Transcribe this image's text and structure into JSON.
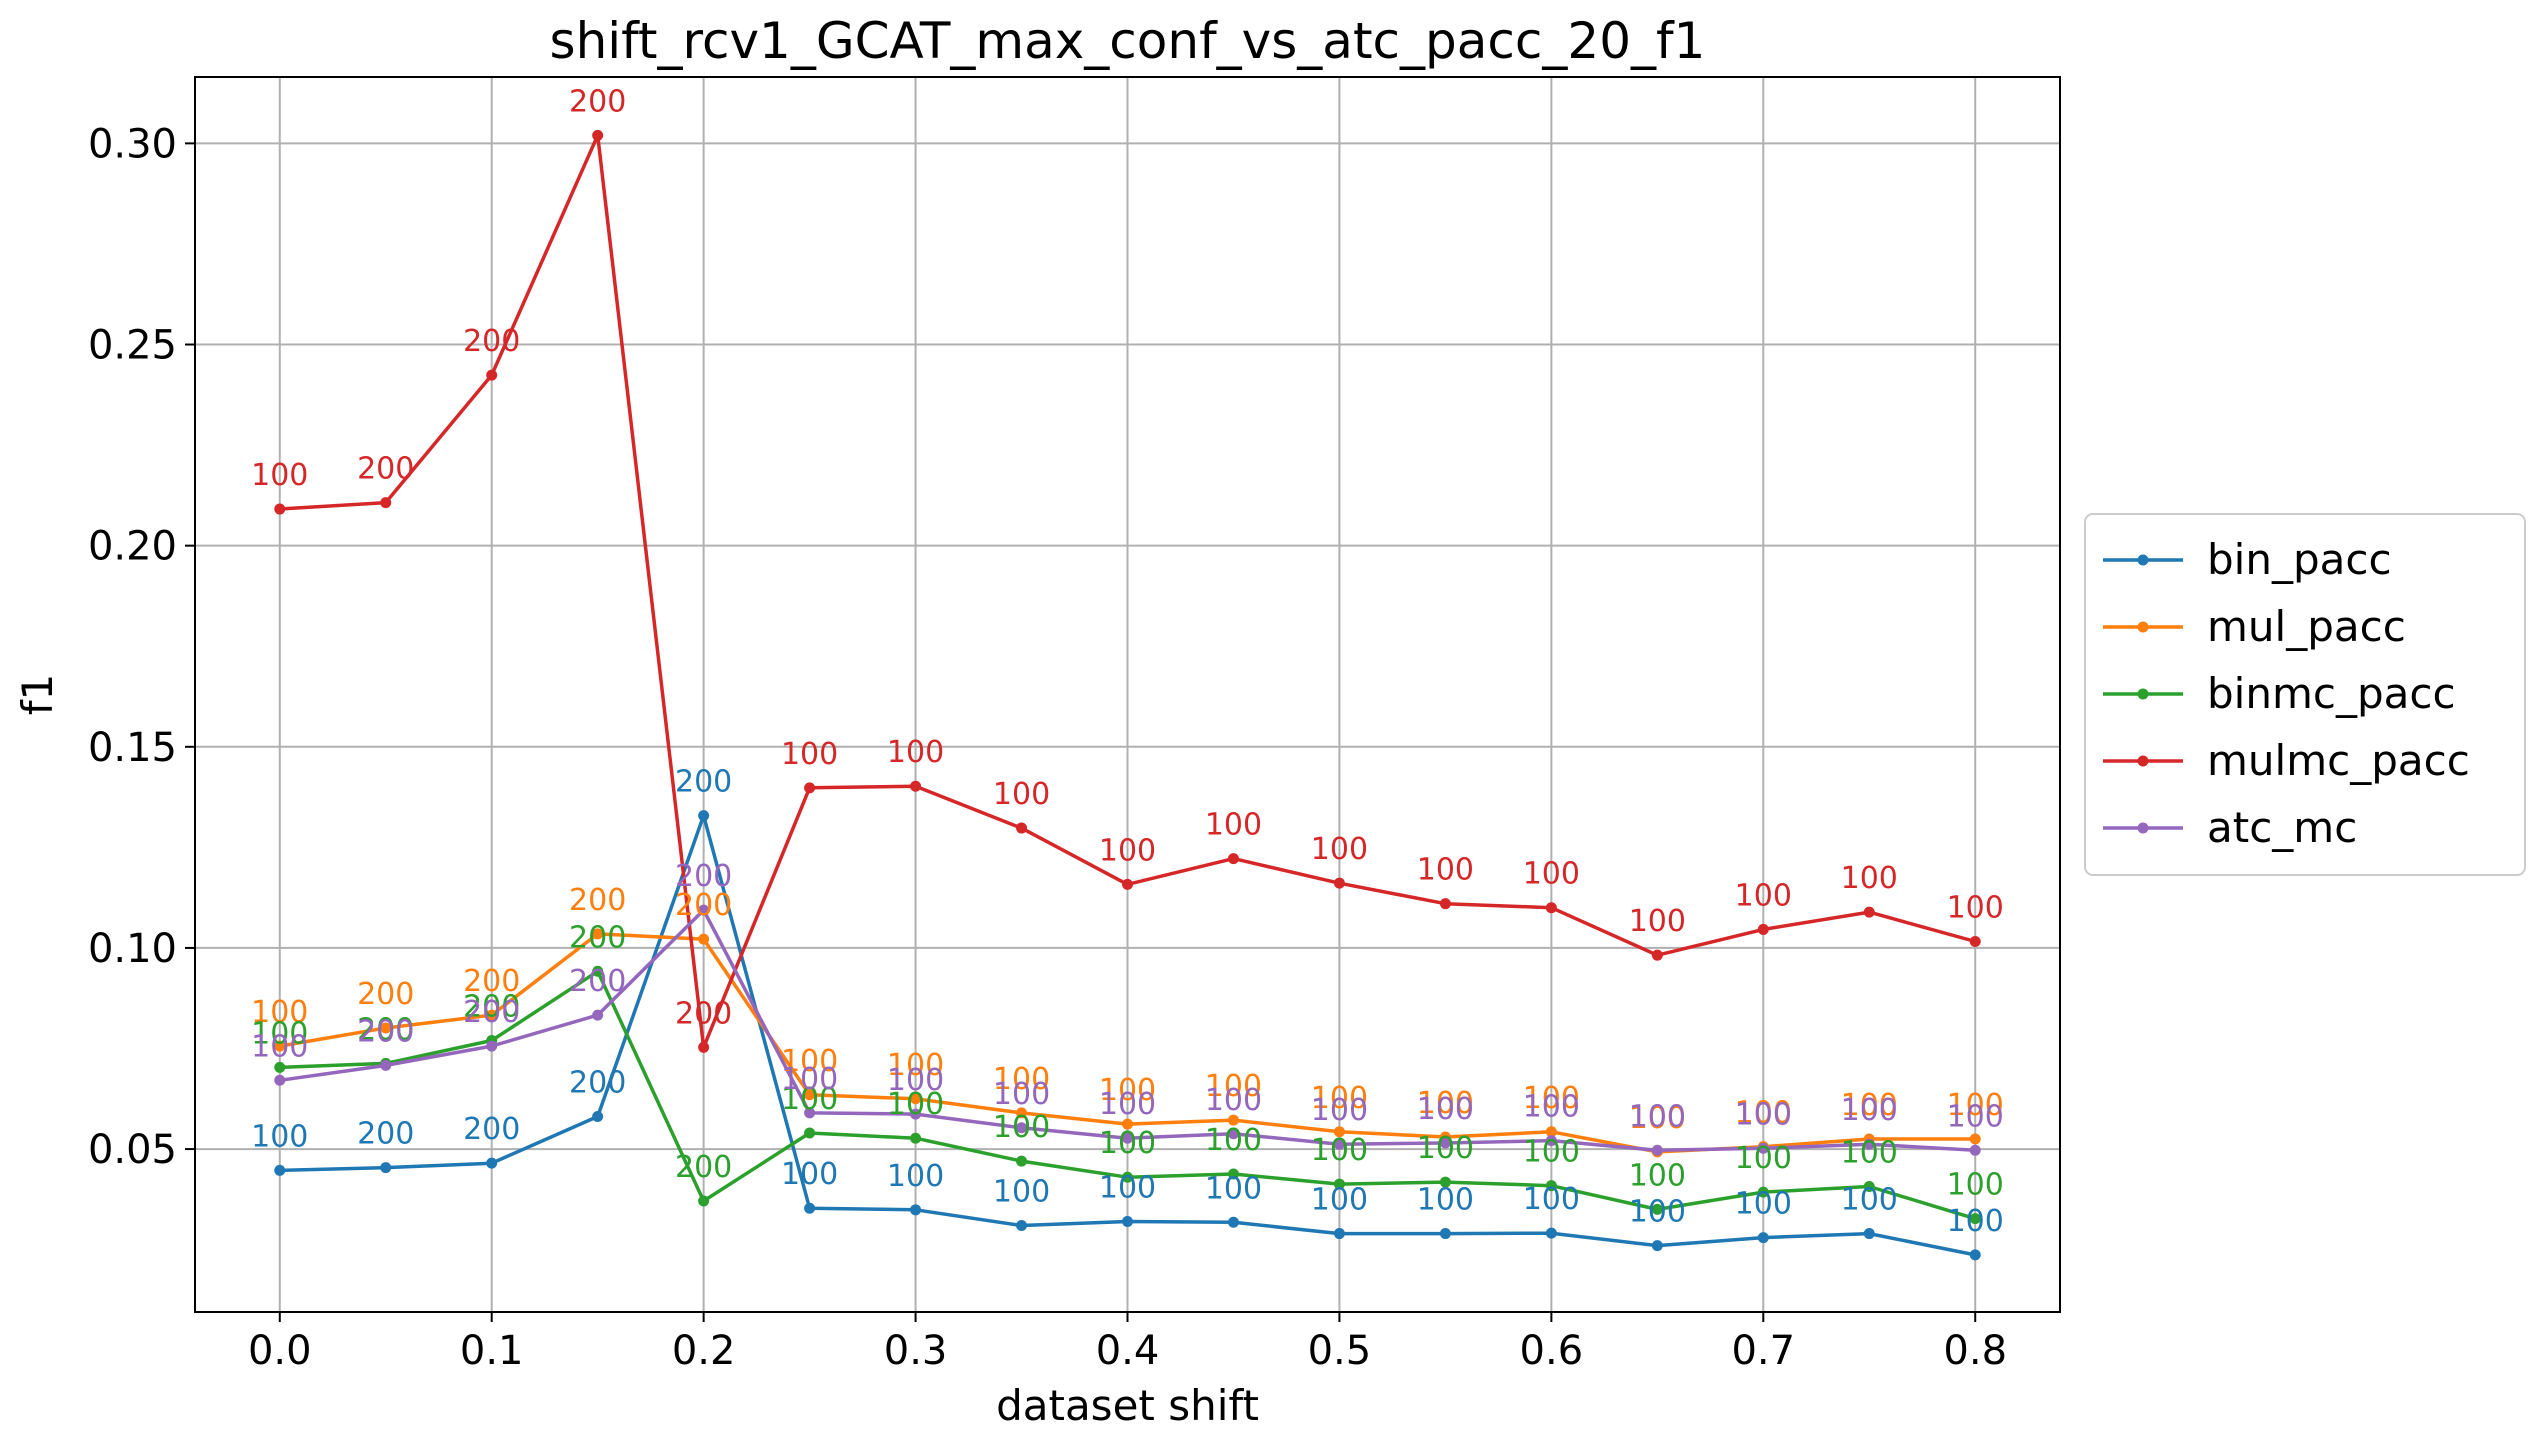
{
  "chart_data": {
    "type": "line",
    "title": "shift_rcv1_GCAT_max_conf_vs_atc_pacc_20_f1",
    "xlabel": "dataset shift",
    "ylabel": "f1",
    "xlim": [
      -0.04,
      0.84
    ],
    "ylim": [
      0.0095,
      0.3165
    ],
    "x_ticks": [
      "0.0",
      "0.1",
      "0.2",
      "0.3",
      "0.4",
      "0.5",
      "0.6",
      "0.7",
      "0.8"
    ],
    "y_ticks": [
      "0.05",
      "0.10",
      "0.15",
      "0.20",
      "0.25",
      "0.30"
    ],
    "grid": true,
    "legend_position": "center-right-outside",
    "x": [
      0.0,
      0.05,
      0.1,
      0.15,
      0.2,
      0.25,
      0.3,
      0.35,
      0.4,
      0.45,
      0.5,
      0.55,
      0.6,
      0.65,
      0.7,
      0.75,
      0.8
    ],
    "series": [
      {
        "name": "bin_pacc",
        "color": "#1f77b4",
        "values": [
          0.0447,
          0.0454,
          0.0465,
          0.0581,
          0.1329,
          0.0353,
          0.0349,
          0.031,
          0.032,
          0.0318,
          0.029,
          0.029,
          0.0291,
          0.026,
          0.028,
          0.029,
          0.0237
        ],
        "labels": [
          "100",
          "200",
          "200",
          "200",
          "200",
          "100",
          "100",
          "100",
          "100",
          "100",
          "100",
          "100",
          "100",
          "100",
          "100",
          "100",
          "100"
        ]
      },
      {
        "name": "mul_pacc",
        "color": "#ff7f0e",
        "values": [
          0.0756,
          0.0801,
          0.0833,
          0.1035,
          0.1022,
          0.0635,
          0.0625,
          0.059,
          0.0562,
          0.0572,
          0.0543,
          0.053,
          0.0543,
          0.0493,
          0.0506,
          0.0525,
          0.0525
        ],
        "labels": [
          "100",
          "200",
          "200",
          "200",
          "200",
          "100",
          "100",
          "100",
          "100",
          "100",
          "100",
          "100",
          "100",
          "100",
          "100",
          "100",
          "100"
        ]
      },
      {
        "name": "binmc_pacc",
        "color": "#2ca02c",
        "values": [
          0.0703,
          0.0713,
          0.077,
          0.0942,
          0.0371,
          0.054,
          0.0527,
          0.047,
          0.043,
          0.0438,
          0.0413,
          0.0418,
          0.0409,
          0.035,
          0.0393,
          0.0407,
          0.0327
        ],
        "labels": [
          "100",
          "200",
          "200",
          "200",
          "200",
          "100",
          "100",
          "100",
          "100",
          "100",
          "100",
          "100",
          "100",
          "100",
          "100",
          "100",
          "100"
        ]
      },
      {
        "name": "mulmc_pacc",
        "color": "#d62728",
        "values": [
          0.2091,
          0.2107,
          0.2424,
          0.302,
          0.0753,
          0.1398,
          0.1402,
          0.1298,
          0.1158,
          0.1222,
          0.1161,
          0.111,
          0.11,
          0.0982,
          0.1046,
          0.1089,
          0.1016
        ],
        "labels": [
          "100",
          "200",
          "200",
          "200",
          "200",
          "100",
          "100",
          "100",
          "100",
          "100",
          "100",
          "100",
          "100",
          "100",
          "100",
          "100",
          "100"
        ]
      },
      {
        "name": "atc_mc",
        "color": "#9467bd",
        "values": [
          0.0671,
          0.0708,
          0.0756,
          0.0833,
          0.1094,
          0.059,
          0.0587,
          0.0553,
          0.0527,
          0.0538,
          0.0512,
          0.0515,
          0.0521,
          0.0497,
          0.0502,
          0.0512,
          0.0497
        ],
        "labels": [
          "100",
          "200",
          "200",
          "200",
          "200",
          "100",
          "100",
          "100",
          "100",
          "100",
          "100",
          "100",
          "100",
          "100",
          "100",
          "100",
          "100"
        ]
      }
    ]
  }
}
